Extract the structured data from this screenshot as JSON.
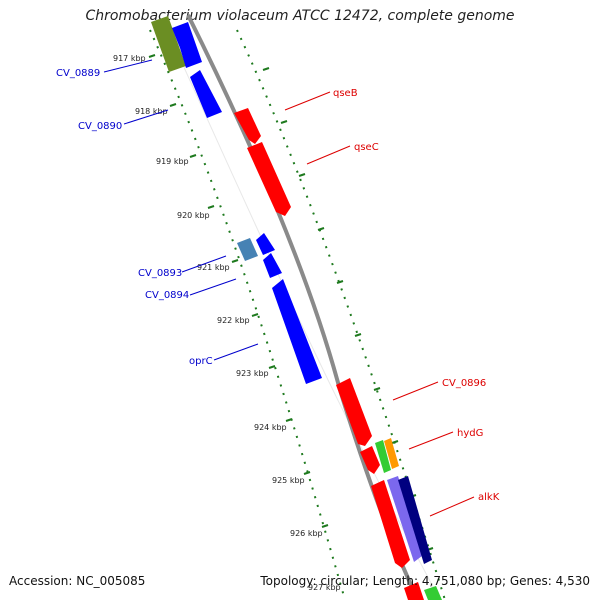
{
  "title": "Chromobacterium violaceum ATCC 12472, complete genome",
  "accession_label": "Accession:",
  "accession_value": "NC_005085",
  "summary": "Topology: circular; Length: 4,751,080 bp; Genes: 4,530",
  "colors": {
    "backbone": "#888888",
    "tick_green": "#1e7a1e",
    "forward_red": "#ff0000",
    "reverse_blue": "#0000ff",
    "label_red": "#dd0000",
    "label_blue": "#0000cc"
  },
  "kbp_ticks": [
    "917 kbp",
    "918 kbp",
    "919 kbp",
    "920 kbp",
    "921 kbp",
    "922 kbp",
    "923 kbp",
    "924 kbp",
    "925 kbp",
    "926 kbp",
    "927 kbp"
  ],
  "gene_labels": {
    "cv0889": "CV_0889",
    "cv0890": "CV_0890",
    "cv0893": "CV_0893",
    "cv0894": "CV_0894",
    "oprC": "oprC",
    "qseB": "qseB",
    "qseC": "qseC",
    "cv0896": "CV_0896",
    "hydG": "hydG",
    "alkK": "alkK"
  },
  "feature_colors": {
    "cv0889": "#6b8e23",
    "cv0893": "#4682b4",
    "hydG_green": "#33cc33",
    "hydG_orange": "#ff9900",
    "alkK_purple": "#7b68ee",
    "alkK_navy": "#000080",
    "tail_green": "#33cc33"
  }
}
